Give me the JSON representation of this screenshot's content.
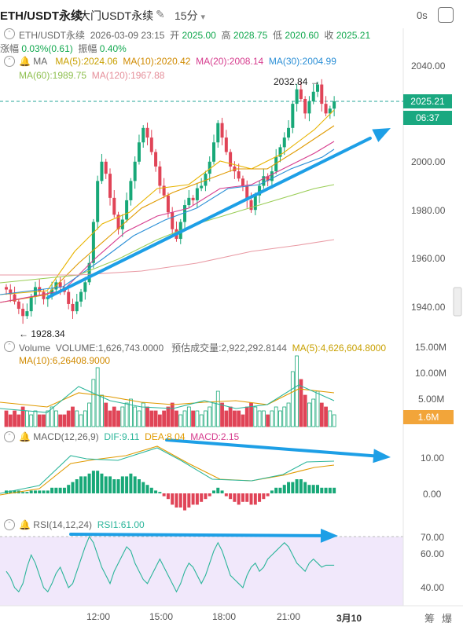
{
  "header": {
    "symbol": "ETH/USDT永续",
    "exchange_title": "大门USDT永续",
    "interval": "15分",
    "interval_arrow": "▾",
    "edit_icon": "edit-icon",
    "seconds_label": "0s"
  },
  "ohlc": {
    "symbol": "ETH/USDT永续",
    "datetime": "2026-03-09 23:15",
    "open_label": "开",
    "open": "2025.00",
    "high_label": "高",
    "high": "2028.75",
    "low_label": "低",
    "low": "2020.60",
    "close_label": "收",
    "close": "2025.21",
    "change_label": "涨幅",
    "change": "0.03%(0.61)",
    "amplitude_label": "振幅",
    "amplitude": "0.40%"
  },
  "ma_legend": {
    "name": "MA",
    "items": [
      {
        "label": "MA(5):2024.06",
        "color": "#e8b400"
      },
      {
        "label": "MA(10):2020.42",
        "color": "#e09a00"
      },
      {
        "label": "MA(20):2008.14",
        "color": "#d63c8e"
      },
      {
        "label": "MA(30):2004.99",
        "color": "#2b8fd6"
      },
      {
        "label": "MA(60):1989.75",
        "color": "#9acd56"
      },
      {
        "label": "MA(120):1967.88",
        "color": "#e99aa4"
      }
    ]
  },
  "price_axis": {
    "ticks": [
      "2040.00",
      "2020.00",
      "2000.00",
      "1980.00",
      "1960.00",
      "1940.00"
    ],
    "current_price": "2025.21",
    "countdown": "06:37",
    "high_marker": "2032.84",
    "low_marker": "1928.34"
  },
  "volume": {
    "title": "Volume",
    "volume_text": "VOLUME:1,626,743.0000",
    "forecast_text": "预估成交量:2,922,292.8144",
    "ma5_text": "MA(5):4,626,604.8000",
    "ma10_text": "MA(10):6,26",
    "ma10_tail": "408.9000",
    "ticks": [
      "15.00M",
      "10.00M",
      "5.00M"
    ],
    "current": "1.6M"
  },
  "macd": {
    "title": "MACD(12,26,9)",
    "dif_text": "DIF:9.11",
    "dea_text": "DEA:8.04",
    "macd_text": "MACD:2.15",
    "ticks": [
      "10.00",
      "0.00"
    ]
  },
  "rsi": {
    "title": "RSI(14,12,24)",
    "rsi_text": "RSI1:61.00",
    "ticks": [
      "70.00",
      "60.00",
      "40.00"
    ]
  },
  "time_axis": {
    "labels": [
      "12:00",
      "15:00",
      "18:00",
      "21:00",
      "3月10"
    ]
  },
  "bottom_right": {
    "left": "筹",
    "right": "爆"
  },
  "colors": {
    "up": "#18a878",
    "down": "#e04457",
    "annotation_arrow": "#1d9fe6",
    "price_line": "#26a69a",
    "rsi_bg": "#f1e8fb"
  },
  "chart_data": {
    "type": "candlestick",
    "xlabel": "",
    "ylabel": "",
    "ylim": [
      1922,
      2050
    ],
    "x": [
      "12:00",
      "15:00",
      "18:00",
      "21:00",
      "3月10"
    ],
    "ma_series": [
      {
        "name": "MA(5)",
        "last": 2024.06
      },
      {
        "name": "MA(10)",
        "last": 2020.42
      },
      {
        "name": "MA(20)",
        "last": 2008.14
      },
      {
        "name": "MA(30)",
        "last": 2004.99
      },
      {
        "name": "MA(60)",
        "last": 1989.75
      },
      {
        "name": "MA(120)",
        "last": 1967.88
      }
    ],
    "current_price": 2025.21,
    "high": 2032.84,
    "low": 1928.34
  }
}
